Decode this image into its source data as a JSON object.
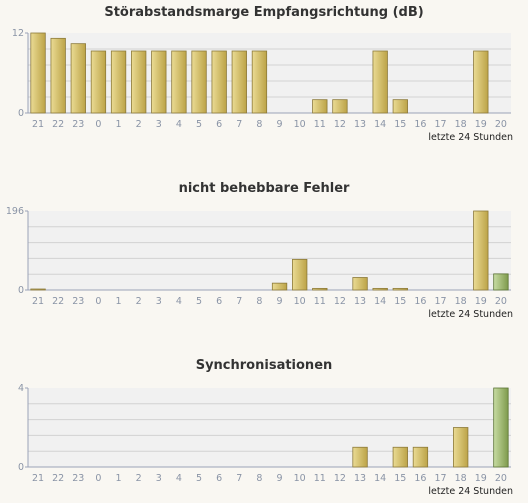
{
  "chart_data": [
    {
      "type": "bar",
      "title": "Störabstandsmarge Empfangsrichtung (dB)",
      "xlabel": "letzte 24 Stunden",
      "categories": [
        "21",
        "22",
        "23",
        "0",
        "1",
        "2",
        "3",
        "4",
        "5",
        "6",
        "7",
        "8",
        "9",
        "10",
        "11",
        "12",
        "13",
        "14",
        "15",
        "16",
        "17",
        "18",
        "19",
        "20"
      ],
      "values": [
        12,
        11.2,
        10.4,
        9.3,
        9.3,
        9.3,
        9.3,
        9.3,
        9.3,
        9.3,
        9.3,
        9.3,
        0,
        0,
        2,
        2,
        0,
        9.3,
        2,
        0,
        0,
        0,
        9.3,
        0
      ],
      "highlight_index": -1,
      "ylim": [
        0,
        12
      ],
      "ytick_labels": [
        "12",
        "0"
      ],
      "grid": true
    },
    {
      "type": "bar",
      "title": "nicht behebbare Fehler",
      "xlabel": "letzte 24 Stunden",
      "categories": [
        "21",
        "22",
        "23",
        "0",
        "1",
        "2",
        "3",
        "4",
        "5",
        "6",
        "7",
        "8",
        "9",
        "10",
        "11",
        "12",
        "13",
        "14",
        "15",
        "16",
        "17",
        "18",
        "19",
        "20"
      ],
      "values": [
        1,
        0,
        0,
        0,
        0,
        0,
        0,
        0,
        0,
        0,
        0,
        0,
        17,
        76,
        4,
        0,
        31,
        4,
        4,
        0,
        0,
        0,
        196,
        40
      ],
      "highlight_index": 23,
      "ylim": [
        0,
        196
      ],
      "ytick_labels": [
        "196",
        "0"
      ],
      "grid": true
    },
    {
      "type": "bar",
      "title": "Synchronisationen",
      "xlabel": "letzte 24 Stunden",
      "categories": [
        "21",
        "22",
        "23",
        "0",
        "1",
        "2",
        "3",
        "4",
        "5",
        "6",
        "7",
        "8",
        "9",
        "10",
        "11",
        "12",
        "13",
        "14",
        "15",
        "16",
        "17",
        "18",
        "19",
        "20"
      ],
      "values": [
        0,
        0,
        0,
        0,
        0,
        0,
        0,
        0,
        0,
        0,
        0,
        0,
        0,
        0,
        0,
        0,
        1,
        0,
        1,
        1,
        0,
        2,
        0,
        4
      ],
      "highlight_index": 23,
      "ylim": [
        0,
        4
      ],
      "ytick_labels": [
        "4",
        "0"
      ],
      "grid": true
    }
  ],
  "colors": {
    "bar_light": "#eadb94",
    "bar_dark": "#bca347",
    "bar_border": "#8c7a3a",
    "highlight_light": "#c7dca3",
    "highlight_dark": "#7e9a4c",
    "highlight_border": "#5a7333",
    "plot_bg": "#f1f1f1",
    "grid": "#d2d2d2",
    "axis": "#9aa3b8"
  }
}
